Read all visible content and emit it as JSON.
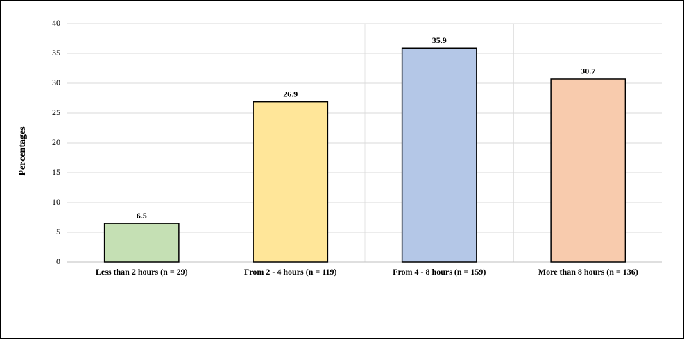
{
  "chart_data": {
    "type": "bar",
    "y_label": "Percentages",
    "categories": [
      "Less than 2 hours (n = 29)",
      "From 2 - 4 hours (n = 119)",
      "From 4 - 8 hours (n = 159)",
      "More than 8 hours (n = 136)"
    ],
    "values": [
      6.5,
      26.9,
      35.9,
      30.7
    ],
    "colors": [
      "#c5e0b4",
      "#ffe699",
      "#b4c7e7",
      "#f8cbad"
    ],
    "ylim": [
      0,
      40
    ],
    "yticks": [
      0,
      5,
      10,
      15,
      20,
      25,
      30,
      35,
      40
    ],
    "grid": true,
    "data_labels": true
  }
}
